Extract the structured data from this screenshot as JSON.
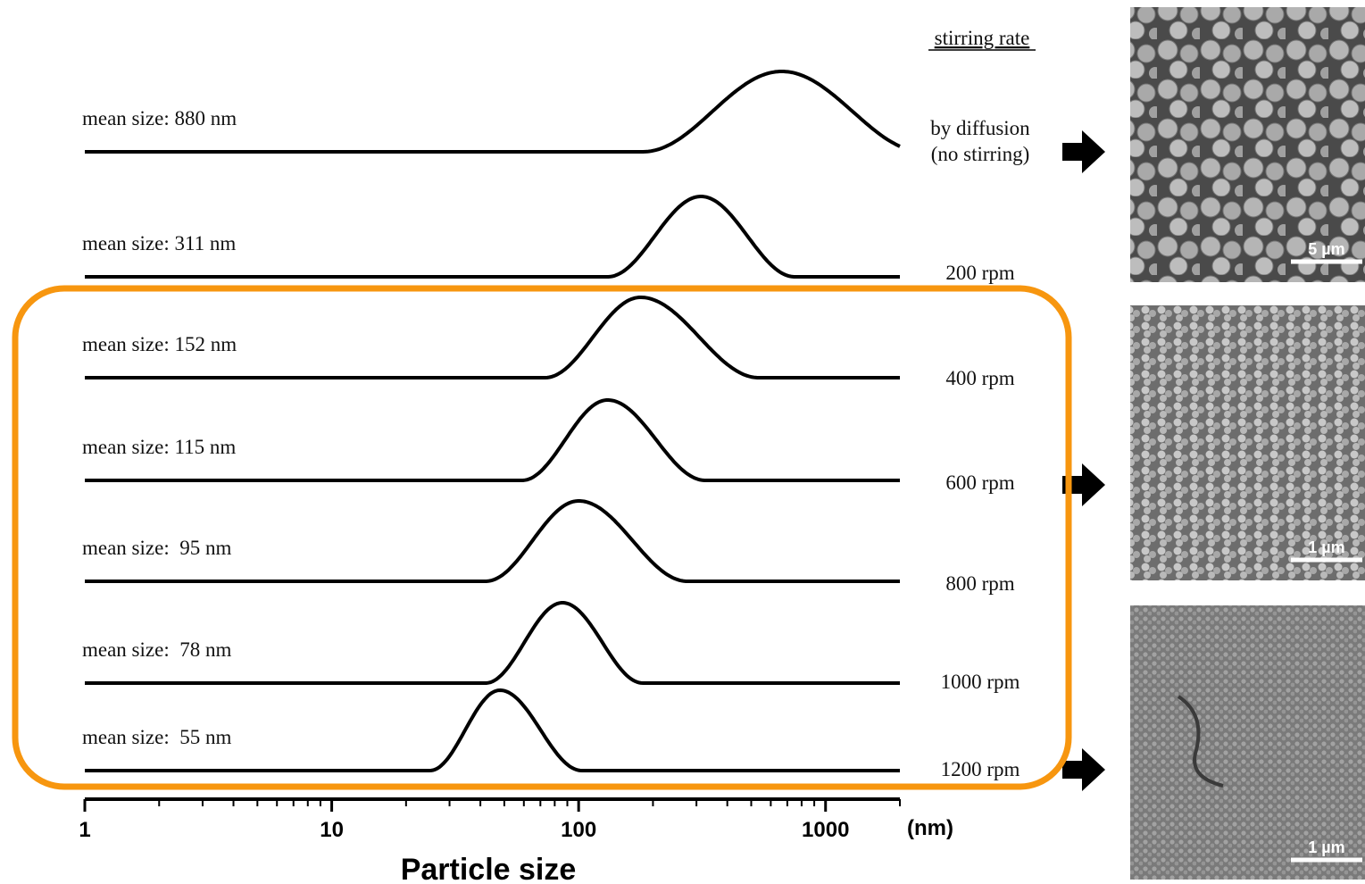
{
  "chart_data": {
    "type": "distribution",
    "xlabel": "Particle size",
    "xunit": "(nm)",
    "xscale": "log",
    "xlim": [
      1,
      2000
    ],
    "xticks": [
      1,
      10,
      100,
      1000
    ],
    "minor_xticks": [
      2,
      3,
      4,
      5,
      6,
      7,
      8,
      9,
      20,
      30,
      40,
      50,
      60,
      70,
      80,
      90,
      200,
      300,
      400,
      500,
      600,
      700,
      800,
      900,
      2000
    ],
    "legend_title": "stirring rate",
    "color": "#000000",
    "highlight_color": "#f7960f",
    "series": [
      {
        "rate_lines": [
          "by diffusion",
          "(no stirring)"
        ],
        "mean_label": "mean size: 880 nm",
        "range": [
          182,
          664,
          2500
        ]
      },
      {
        "rate_lines": [
          "200 rpm"
        ],
        "mean_label": "mean size: 311 nm",
        "range": [
          131,
          313,
          750
        ]
      },
      {
        "rate_lines": [
          "400 rpm"
        ],
        "mean_label": "mean size: 152 nm",
        "range": [
          73,
          178,
          537
        ]
      },
      {
        "rate_lines": [
          "600 rpm"
        ],
        "mean_label": "mean size: 115 nm",
        "range": [
          59,
          131,
          326
        ]
      },
      {
        "rate_lines": [
          "800 rpm"
        ],
        "mean_label": "mean size:  95 nm",
        "range": [
          42,
          100,
          276
        ]
      },
      {
        "rate_lines": [
          "1000 rpm"
        ],
        "mean_label": "mean size:  78 nm",
        "range": [
          42,
          86,
          182
        ]
      },
      {
        "rate_lines": [
          "1200 rpm"
        ],
        "mean_label": "mean size:  55 nm",
        "range": [
          25,
          48,
          103
        ]
      }
    ],
    "images": [
      {
        "scale_label": "5 µm"
      },
      {
        "scale_label": "1 µm"
      },
      {
        "scale_label": "1 µm"
      }
    ]
  }
}
